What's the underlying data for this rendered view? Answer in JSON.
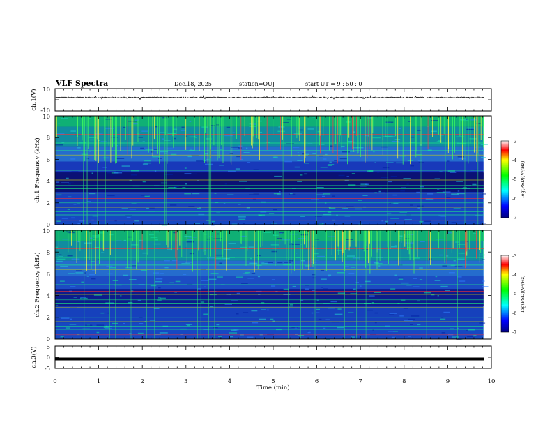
{
  "header": {
    "title": "VLF Spectra",
    "date": "Dec.18, 2025",
    "station": "station=OUJ",
    "start": "start UT =  9 : 50 : 0"
  },
  "colors": {
    "background": "#ffffff",
    "axis": "#000000",
    "waveform": "#000000"
  },
  "chart_data": [
    {
      "name": "ch1-waveform",
      "type": "line",
      "ylabel": "ch.1(V)",
      "ylim": [
        -10,
        10
      ],
      "yticks": [
        "10",
        "-10"
      ],
      "xlim": [
        0,
        10
      ],
      "data_extent_min": 9.83,
      "description_of_trace": "noisy waveform around +2 V, amplitude about 1 V"
    },
    {
      "name": "ch1-spectrogram",
      "type": "heatmap",
      "ylabel": "ch.1 Frequency (kHz)",
      "ylim": [
        0,
        10
      ],
      "yticks": [
        "0",
        "2",
        "4",
        "6",
        "8",
        "10"
      ],
      "xlim": [
        0,
        10
      ],
      "data_extent_min": 9.83,
      "colorbar": {
        "label": "log(PSD)(V²/Hz)",
        "range": [
          -7,
          -3
        ],
        "ticks": [
          "-3",
          "-4",
          "-5",
          "-6",
          "-7"
        ]
      }
    },
    {
      "name": "ch2-spectrogram",
      "type": "heatmap",
      "ylabel": "ch.2 Frequency (kHz)",
      "ylim": [
        0,
        10
      ],
      "yticks": [
        "0",
        "2",
        "4",
        "6",
        "8",
        "10"
      ],
      "xlim": [
        0,
        10
      ],
      "data_extent_min": 9.83,
      "colorbar": {
        "label": "log(PSD)(V²/Hz)",
        "range": [
          -7,
          -3
        ],
        "ticks": [
          "-3",
          "-4",
          "-5",
          "-6",
          "-7"
        ]
      }
    },
    {
      "name": "ch3-waveform",
      "type": "line",
      "ylabel": "ch.3(V)",
      "ylim": [
        -5,
        5
      ],
      "yticks": [
        "5",
        "0",
        "-5"
      ],
      "xlim": [
        0,
        10
      ],
      "data_extent_min": 9.83,
      "level": -0.8
    }
  ],
  "xaxis": {
    "label": "Time (min)",
    "ticks": [
      "0",
      "1",
      "2",
      "3",
      "4",
      "5",
      "6",
      "7",
      "8",
      "9",
      "10"
    ]
  }
}
